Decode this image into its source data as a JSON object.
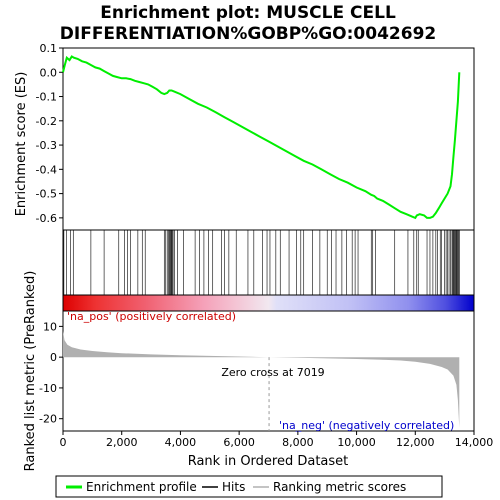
{
  "chart_data": {
    "type": "line",
    "title_lines": [
      "Enrichment plot: MUSCLE CELL",
      "DIFFERENTIATION%GOBP%GO:0042692"
    ],
    "es_panel": {
      "ylabel": "Enrichment score (ES)",
      "ylim": [
        -0.65,
        0.1
      ],
      "yticks": [
        0.1,
        0.0,
        -0.1,
        -0.2,
        -0.3,
        -0.4,
        -0.5,
        -0.6
      ],
      "ytick_labels": [
        "0.1",
        "0.0",
        "-0.1",
        "-0.2",
        "-0.3",
        "-0.4",
        "-0.5",
        "-0.6"
      ],
      "line_color": "#00ee00",
      "series": [
        {
          "x": [
            0,
            60,
            130,
            220,
            300,
            370,
            500,
            650,
            800,
            950,
            1100,
            1250,
            1400,
            1550,
            1700,
            1850,
            2000,
            2150,
            2300,
            2450,
            2600,
            2750,
            2900,
            3050,
            3200,
            3350,
            3450,
            3550,
            3620,
            3700,
            3800,
            4000,
            4300,
            4600,
            4900,
            5200,
            5500,
            5800,
            6100,
            6400,
            6700,
            7000,
            7300,
            7600,
            7900,
            8200,
            8500,
            8800,
            9100,
            9400,
            9700,
            10000,
            10300,
            10500,
            10600,
            10700,
            10900,
            11100,
            11300,
            11500,
            11700,
            11900,
            12000,
            12050,
            12150,
            12300,
            12400,
            12500,
            12600,
            12700,
            12800,
            12900,
            13000,
            13100,
            13200,
            13250,
            13300,
            13350,
            13400,
            13450,
            13500
          ],
          "y": [
            0.0,
            0.03,
            0.06,
            0.05,
            0.065,
            0.06,
            0.055,
            0.045,
            0.04,
            0.03,
            0.02,
            0.015,
            0.005,
            -0.005,
            -0.015,
            -0.02,
            -0.025,
            -0.025,
            -0.028,
            -0.035,
            -0.04,
            -0.045,
            -0.05,
            -0.06,
            -0.07,
            -0.085,
            -0.09,
            -0.085,
            -0.075,
            -0.075,
            -0.08,
            -0.09,
            -0.11,
            -0.13,
            -0.145,
            -0.165,
            -0.185,
            -0.205,
            -0.225,
            -0.245,
            -0.265,
            -0.285,
            -0.305,
            -0.325,
            -0.345,
            -0.365,
            -0.38,
            -0.4,
            -0.42,
            -0.44,
            -0.455,
            -0.475,
            -0.49,
            -0.505,
            -0.51,
            -0.52,
            -0.53,
            -0.545,
            -0.56,
            -0.575,
            -0.585,
            -0.595,
            -0.6,
            -0.59,
            -0.585,
            -0.59,
            -0.6,
            -0.6,
            -0.595,
            -0.58,
            -0.56,
            -0.54,
            -0.52,
            -0.5,
            -0.47,
            -0.42,
            -0.35,
            -0.28,
            -0.2,
            -0.12,
            0.0
          ]
        }
      ]
    },
    "hits": [
      30,
      120,
      250,
      350,
      950,
      1400,
      1900,
      2100,
      2200,
      2300,
      2550,
      2700,
      2800,
      3450,
      3500,
      3550,
      3600,
      3620,
      3650,
      3680,
      3700,
      3720,
      3750,
      3800,
      3900,
      4100,
      4500,
      4650,
      4800,
      4950,
      5100,
      5400,
      5500,
      5650,
      5900,
      6300,
      6500,
      6800,
      6950,
      7050,
      7250,
      7400,
      7700,
      7950,
      8100,
      8200,
      8500,
      8750,
      9000,
      9150,
      9300,
      9500,
      9650,
      9850,
      9950,
      10050,
      10500,
      10550,
      10650,
      11300,
      11750,
      11950,
      12050,
      12100,
      12400,
      12500,
      12600,
      12700,
      12750,
      12850,
      12900,
      13000,
      13050,
      13100,
      13150,
      13200,
      13250,
      13280,
      13300,
      13320,
      13350,
      13380,
      13400,
      13420,
      13450,
      13480,
      13500
    ],
    "heatbar": {
      "stops": [
        {
          "pos": 0.0,
          "color": "#dd0000"
        },
        {
          "pos": 0.08,
          "color": "#ee3333"
        },
        {
          "pos": 0.2,
          "color": "#f06070"
        },
        {
          "pos": 0.34,
          "color": "#f5a0b8"
        },
        {
          "pos": 0.5,
          "color": "#f2e8f0"
        },
        {
          "pos": 0.52,
          "color": "#e0e0f8"
        },
        {
          "pos": 0.7,
          "color": "#c0c0f5"
        },
        {
          "pos": 0.84,
          "color": "#9090ee"
        },
        {
          "pos": 0.93,
          "color": "#5050e0"
        },
        {
          "pos": 1.0,
          "color": "#0000cc"
        }
      ]
    },
    "metric_panel": {
      "ylabel": "Ranked list metric (PreRanked)",
      "ylim": [
        -24,
        15
      ],
      "yticks": [
        10,
        0,
        -10,
        -20
      ],
      "ytick_labels": [
        "10",
        "0",
        "-10",
        "-20"
      ],
      "fill_color": "#b0b0b0",
      "series": [
        {
          "x": [
            0,
            50,
            150,
            300,
            600,
            1000,
            1500,
            2000,
            3000,
            4000,
            5000,
            6000,
            7019,
            8000,
            9000,
            10000,
            11000,
            11500,
            12000,
            12500,
            12900,
            13100,
            13300,
            13400,
            13450,
            13500
          ],
          "y": [
            8.5,
            5.5,
            4.0,
            3.2,
            2.5,
            2.0,
            1.6,
            1.3,
            0.9,
            0.6,
            0.4,
            0.2,
            0.0,
            -0.2,
            -0.4,
            -0.6,
            -0.9,
            -1.1,
            -1.5,
            -2.2,
            -3.2,
            -4.0,
            -6.0,
            -9.0,
            -14.0,
            -23.0
          ]
        }
      ],
      "annotations": {
        "zero_cross": "Zero cross at 7019",
        "pos_label": "'na_pos' (positively correlated)",
        "neg_label": "'na_neg' (negatively correlated)"
      },
      "zero_cross_x": 7019
    },
    "x_axis": {
      "label": "Rank in Ordered Dataset",
      "xlim": [
        0,
        14000
      ],
      "ticks": [
        0,
        2000,
        4000,
        6000,
        8000,
        10000,
        12000,
        14000
      ],
      "tick_labels": [
        "0",
        "2,000",
        "4,000",
        "6,000",
        "8,000",
        "10,000",
        "12,000",
        "14,000"
      ]
    },
    "legend": {
      "placement": "bottom",
      "items": [
        {
          "label": "Enrichment profile",
          "color": "#00ee00"
        },
        {
          "label": "Hits",
          "color": "#000000"
        },
        {
          "label": "Ranking metric scores",
          "color": "#b0b0b0"
        }
      ]
    }
  }
}
